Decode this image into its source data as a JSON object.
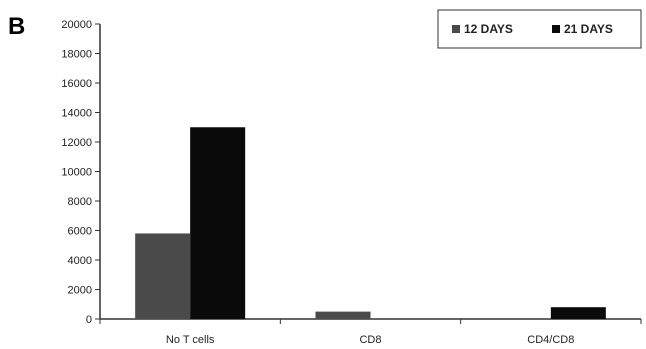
{
  "panel_label": "B",
  "colors": {
    "series_12_days": "#4a4a4a",
    "series_21_days": "#0a0a0a",
    "axis": "#333333"
  },
  "chart_data": {
    "type": "bar",
    "categories": [
      "No T cells",
      "CD8",
      "CD4/CD8"
    ],
    "series": [
      {
        "name": "12 DAYS",
        "values": [
          5800,
          500,
          0
        ]
      },
      {
        "name": "21 DAYS",
        "values": [
          13000,
          0,
          800
        ]
      }
    ],
    "y_ticks": [
      0,
      2000,
      4000,
      6000,
      8000,
      10000,
      12000,
      14000,
      16000,
      18000,
      20000
    ],
    "ylim": [
      0,
      20000
    ],
    "grid": false,
    "legend_position": "top-right"
  }
}
